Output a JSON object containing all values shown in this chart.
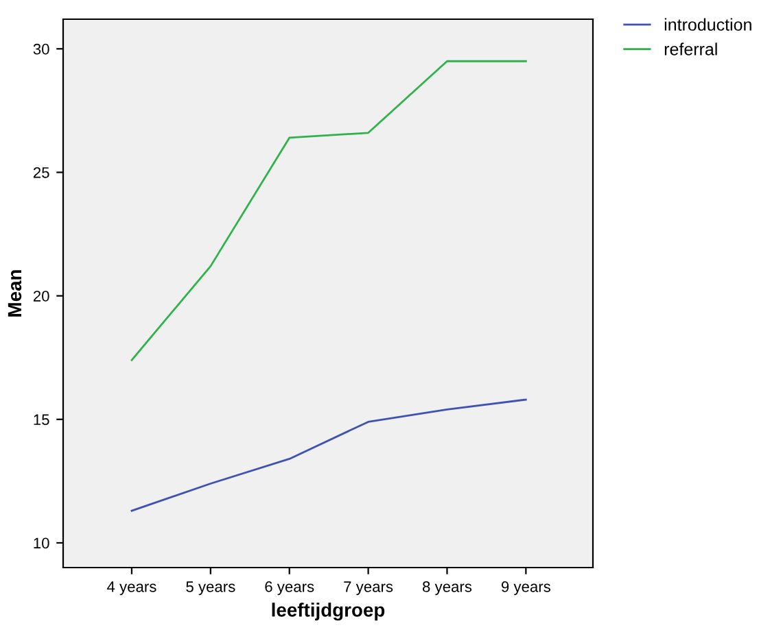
{
  "chart_data": {
    "type": "line",
    "xlabel": "leeftijdgroep",
    "ylabel": "Mean",
    "categories": [
      "4 years",
      "5 years",
      "6 years",
      "7 years",
      "8 years",
      "9 years"
    ],
    "series": [
      {
        "name": "introduction",
        "color": "#3f51b5",
        "values": [
          11.3,
          12.4,
          13.4,
          14.9,
          15.4,
          15.8
        ]
      },
      {
        "name": "referral",
        "color": "#2db34a",
        "values": [
          17.4,
          21.2,
          26.4,
          26.6,
          29.5,
          29.5
        ]
      }
    ],
    "ylim": [
      9,
      31.2
    ],
    "yticks": [
      10,
      15,
      20,
      25,
      30
    ],
    "grid": false,
    "legend": "top right",
    "marker": "none",
    "line_style": "solid"
  }
}
